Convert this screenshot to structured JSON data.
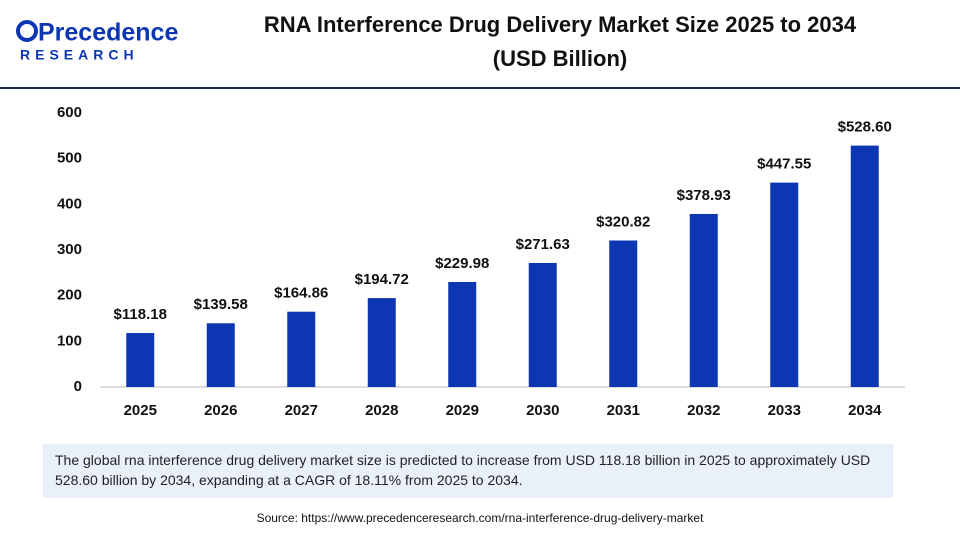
{
  "logo": {
    "name": "Precedence",
    "tagline": "RESEARCH"
  },
  "chart_data": {
    "type": "bar",
    "title": "RNA Interference Drug Delivery Market Size 2025 to 2034",
    "subtitle": "(USD Billion)",
    "categories": [
      "2025",
      "2026",
      "2027",
      "2028",
      "2029",
      "2030",
      "2031",
      "2032",
      "2033",
      "2034"
    ],
    "values": [
      118.18,
      139.58,
      164.86,
      194.72,
      229.98,
      271.63,
      320.82,
      378.93,
      447.55,
      528.6
    ],
    "value_labels": [
      "$118.18",
      "$139.58",
      "$164.86",
      "$194.72",
      "$229.98",
      "$271.63",
      "$320.82",
      "$378.93",
      "$447.55",
      "$528.60"
    ],
    "color": "#0d37b2",
    "ylim": [
      0,
      600
    ],
    "yticks": [
      0,
      100,
      200,
      300,
      400,
      500,
      600
    ],
    "grid": false
  },
  "description": "The global rna interference drug delivery market size is predicted to increase from USD 118.18 billion in 2025 to approximately USD 528.60 billion by 2034, expanding at a CAGR of 18.11% from 2025 to 2034.",
  "source": "Source: https://www.precedenceresearch.com/rna-interference-drug-delivery-market"
}
